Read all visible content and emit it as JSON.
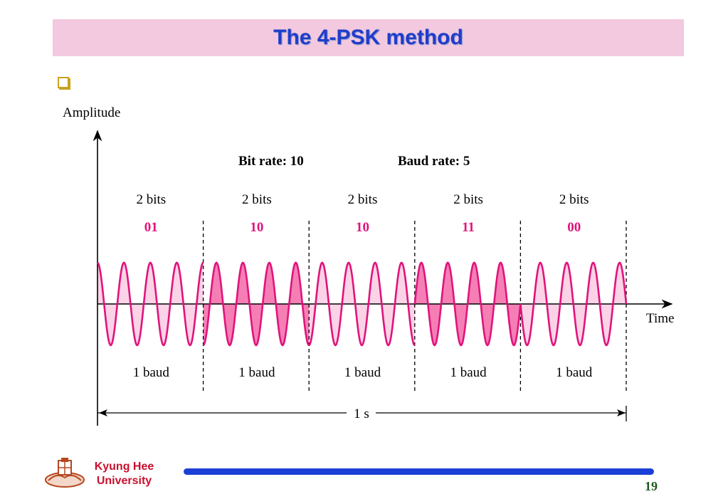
{
  "slide": {
    "title": "The 4-PSK method",
    "page_number": "19",
    "university": {
      "line1": "Kyung Hee",
      "line2": "University"
    }
  },
  "diagram": {
    "y_axis_label": "Amplitude",
    "x_axis_label": "Time",
    "bit_rate_label": "Bit rate: 10",
    "baud_rate_label": "Baud rate: 5",
    "duration_label": "1 s",
    "signal_color": "#e0147c",
    "signal_fill_light": "#fbd3e6",
    "signal_fill_dark": "#f57fb5",
    "segments": [
      {
        "bits_label": "2 bits",
        "code": "01",
        "baud_label": "1 baud",
        "phase_deg": 0
      },
      {
        "bits_label": "2 bits",
        "code": "10",
        "baud_label": "1 baud",
        "phase_deg": 180
      },
      {
        "bits_label": "2 bits",
        "code": "10",
        "baud_label": "1 baud",
        "phase_deg": 180
      },
      {
        "bits_label": "2 bits",
        "code": "11",
        "baud_label": "1 baud",
        "phase_deg": 270
      },
      {
        "bits_label": "2 bits",
        "code": "00",
        "baud_label": "1 baud",
        "phase_deg": 90
      }
    ]
  }
}
